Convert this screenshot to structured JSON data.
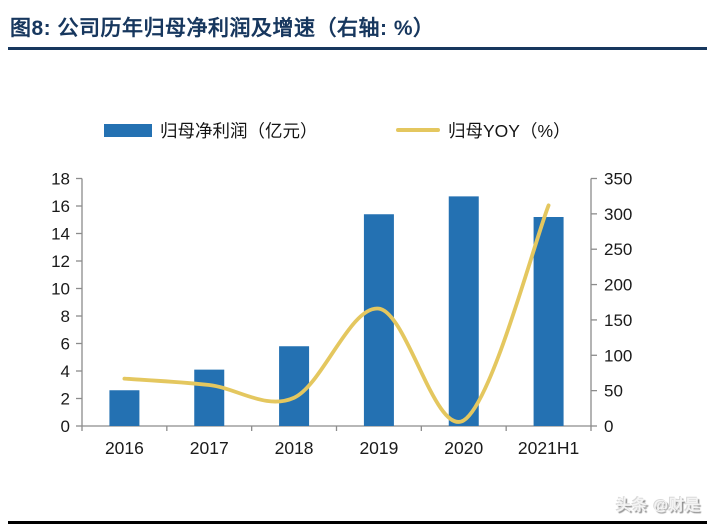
{
  "header": {
    "title": "图8:  公司历年归母净利润及增速（右轴:  %）"
  },
  "legend": {
    "bar_label": "归母净利润（亿元）",
    "line_label": "归母YOY（%）"
  },
  "watermark": {
    "text": "头条 @财是"
  },
  "colors": {
    "bar": "#2471B2",
    "line": "#E4C75F",
    "title_navy": "#17375E",
    "axis_line": "#8C8C8C",
    "axis_text": "#1A1A1A",
    "bottom_rule": "#000000"
  },
  "chart_data": {
    "type": "bar",
    "title": "",
    "xlabel": "",
    "ylabel_left": "归母净利润（亿元）",
    "ylabel_right": "归母YOY（%）",
    "grid": false,
    "legend_position": "top",
    "categories": [
      "2016",
      "2017",
      "2018",
      "2019",
      "2020",
      "2021H1"
    ],
    "series": [
      {
        "name": "归母净利润（亿元）",
        "type": "bar",
        "axis": "left",
        "values": [
          2.6,
          4.1,
          5.8,
          15.4,
          16.7,
          15.2
        ],
        "color": "#2471B2"
      },
      {
        "name": "归母YOY（%）",
        "type": "line",
        "axis": "right",
        "values": [
          67,
          58,
          40,
          166,
          8,
          312
        ],
        "color": "#E4C75F"
      }
    ],
    "left_axis": {
      "min": 0,
      "max": 18,
      "step": 2
    },
    "right_axis": {
      "min": 0,
      "max": 350,
      "step": 50
    }
  }
}
